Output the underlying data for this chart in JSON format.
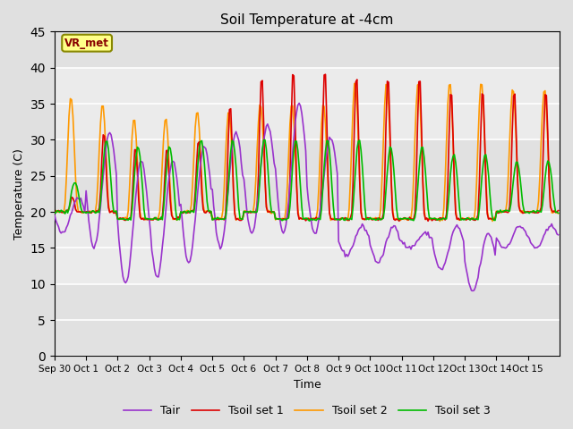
{
  "title": "Soil Temperature at -4cm",
  "xlabel": "Time",
  "ylabel": "Temperature (C)",
  "ylim": [
    0,
    45
  ],
  "yticks": [
    0,
    5,
    10,
    15,
    20,
    25,
    30,
    35,
    40,
    45
  ],
  "legend_labels": [
    "Tair",
    "Tsoil set 1",
    "Tsoil set 2",
    "Tsoil set 3"
  ],
  "legend_colors": [
    "#9933cc",
    "#dd0000",
    "#ff9900",
    "#00bb00"
  ],
  "annotation_text": "VR_met",
  "n_days": 16,
  "tick_labels": [
    "Sep 30",
    "Oct 1",
    "Oct 2",
    "Oct 3",
    "Oct 4",
    "Oct 5",
    "Oct 6",
    "Oct 7",
    "Oct 8",
    "Oct 9",
    "Oct 10",
    "Oct 11",
    "Oct 12",
    "Oct 13",
    "Oct 14",
    "Oct 15"
  ],
  "tair_min": [
    17,
    15,
    10,
    11,
    13,
    15,
    17,
    17,
    17,
    14,
    13,
    15,
    12,
    9,
    15,
    15
  ],
  "tair_max": [
    22,
    31,
    27,
    27,
    29,
    31,
    32,
    35,
    30,
    18,
    18,
    17,
    18,
    17,
    18,
    18
  ],
  "tsoil1_max": [
    22,
    31,
    29,
    29,
    30,
    35,
    39,
    40,
    40,
    39,
    39,
    39,
    37,
    37,
    37,
    37
  ],
  "tsoil2_max": [
    36,
    35,
    33,
    33,
    34,
    34,
    35,
    35,
    35,
    38,
    38,
    38,
    38,
    38,
    37,
    37
  ],
  "tsoil3_max": [
    24,
    30,
    29,
    29,
    30,
    30,
    30,
    30,
    30,
    30,
    29,
    29,
    28,
    28,
    27,
    27
  ],
  "tsoil_min": [
    20,
    20,
    19,
    19,
    20,
    19,
    20,
    19,
    19,
    19,
    19,
    19,
    19,
    19,
    20,
    20
  ]
}
